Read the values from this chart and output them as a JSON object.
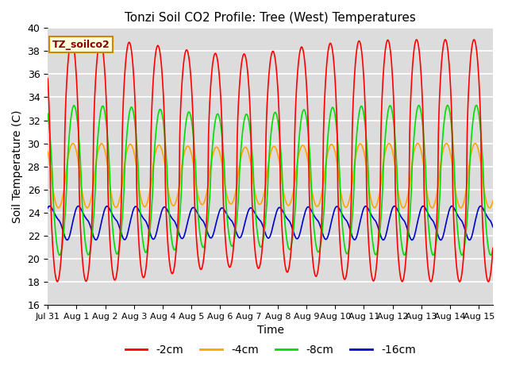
{
  "title": "Tonzi Soil CO2 Profile: Tree (West) Temperatures",
  "xlabel": "Time",
  "ylabel": "Soil Temperature (C)",
  "ylim": [
    16,
    40
  ],
  "yticks": [
    16,
    18,
    20,
    22,
    24,
    26,
    28,
    30,
    32,
    34,
    36,
    38,
    40
  ],
  "xlim_days": [
    0,
    15.5
  ],
  "xtick_labels": [
    "Jul 31",
    "Aug 1",
    "Aug 2",
    "Aug 3",
    "Aug 4",
    "Aug 5",
    "Aug 6",
    "Aug 7",
    "Aug 8",
    "Aug 9",
    "Aug 10",
    "Aug 11",
    "Aug 12",
    "Aug 13",
    "Aug 14",
    "Aug 15"
  ],
  "xtick_positions": [
    0,
    1,
    2,
    3,
    4,
    5,
    6,
    7,
    8,
    9,
    10,
    11,
    12,
    13,
    14,
    15
  ],
  "series_colors": {
    "-2cm": "#FF0000",
    "-4cm": "#FFA500",
    "-8cm": "#00DD00",
    "-16cm": "#0000CC"
  },
  "legend_label": "TZ_soilco2",
  "bg_color": "#DCDCDC",
  "grid_color": "white"
}
